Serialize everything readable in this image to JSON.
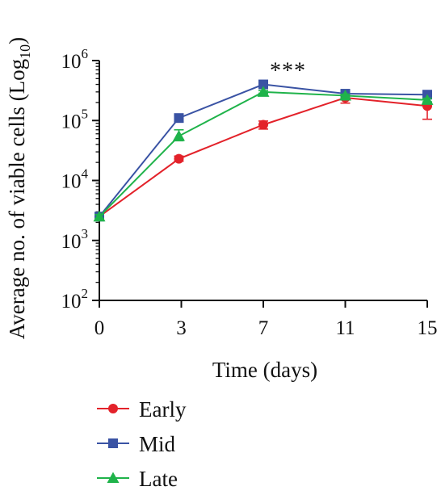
{
  "chart_data": {
    "type": "line",
    "title": "",
    "xlabel": "Time (days)",
    "ylabel": "Average no. of viable cells (Log",
    "ylabel_sub": "10",
    "ylabel_close": ")",
    "x_scale": "ordinal",
    "y_scale": "log",
    "x_ticks": [
      {
        "label": "0"
      },
      {
        "label": "3"
      },
      {
        "label": "7"
      },
      {
        "label": "11"
      },
      {
        "label": "15"
      }
    ],
    "y_ticks": [
      {
        "value": 100,
        "base": "10",
        "exp": "2"
      },
      {
        "value": 1000,
        "base": "10",
        "exp": "3"
      },
      {
        "value": 10000,
        "base": "10",
        "exp": "4"
      },
      {
        "value": 100000,
        "base": "10",
        "exp": "5"
      },
      {
        "value": 1000000,
        "base": "10",
        "exp": "6"
      }
    ],
    "ylim": [
      100,
      1000000
    ],
    "grid": false,
    "legend_position": "bottom-left",
    "annotations": [
      {
        "text": "***",
        "x_index": 2.3,
        "y": 700000
      }
    ],
    "series": [
      {
        "name": "Early",
        "color": "#e3222a",
        "marker": "circle",
        "x_index": [
          0,
          0.97,
          2.0,
          3.0,
          4.0
        ],
        "values": [
          2500,
          23000,
          85000,
          240000,
          175000
        ],
        "err_low": [
          2200,
          21000,
          72000,
          195000,
          105000
        ],
        "err_high": [
          2800,
          25500,
          98000,
          285000,
          240000
        ]
      },
      {
        "name": "Mid",
        "color": "#3a53a4",
        "marker": "square",
        "x_index": [
          0,
          0.97,
          2.0,
          3.0,
          4.0
        ],
        "values": [
          2500,
          110000,
          400000,
          280000,
          270000
        ],
        "err_low": [
          2300,
          95000,
          380000,
          260000,
          250000
        ],
        "err_high": [
          2700,
          120000,
          420000,
          300000,
          290000
        ]
      },
      {
        "name": "Late",
        "color": "#1fb34a",
        "marker": "triangle",
        "x_index": [
          0,
          0.97,
          2.0,
          3.0,
          4.0
        ],
        "values": [
          2500,
          55000,
          300000,
          260000,
          220000
        ],
        "err_low": [
          2300,
          46000,
          285000,
          245000,
          205000
        ],
        "err_high": [
          2700,
          70000,
          315000,
          275000,
          235000
        ]
      }
    ]
  }
}
